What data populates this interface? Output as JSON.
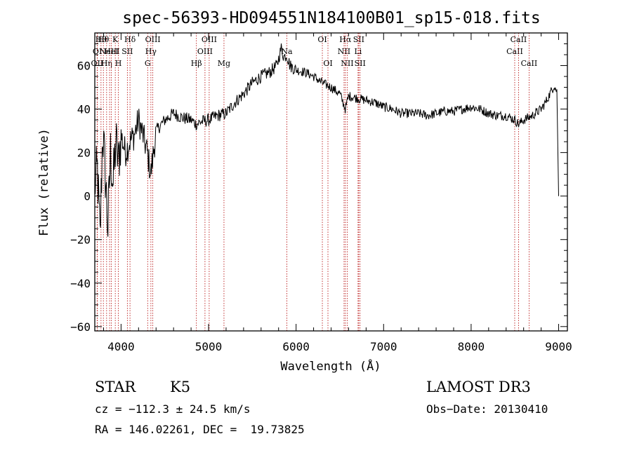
{
  "chart_data": {
    "type": "line",
    "title": "spec-56393-HD094551N184100B01_sp15-018.fits",
    "xlabel": "Wavelength (Å)",
    "ylabel": "Flux (relative)",
    "xlim": [
      3700,
      9100
    ],
    "ylim": [
      -62,
      75
    ],
    "xticks": [
      4000,
      5000,
      6000,
      7000,
      8000,
      9000
    ],
    "yticks": [
      -60,
      -40,
      -20,
      0,
      20,
      40,
      60
    ],
    "series": [
      {
        "name": "flux",
        "x": [
          3700,
          3730,
          3760,
          3790,
          3820,
          3850,
          3880,
          3910,
          3940,
          3970,
          4000,
          4050,
          4100,
          4150,
          4200,
          4250,
          4300,
          4340,
          4400,
          4500,
          4600,
          4700,
          4800,
          4861,
          4900,
          5000,
          5100,
          5200,
          5300,
          5400,
          5500,
          5600,
          5700,
          5780,
          5830,
          5860,
          5893,
          5930,
          6000,
          6100,
          6200,
          6300,
          6400,
          6500,
          6563,
          6600,
          6700,
          6800,
          6900,
          7000,
          7100,
          7200,
          7300,
          7400,
          7500,
          7600,
          7700,
          7800,
          7900,
          8000,
          8100,
          8200,
          8300,
          8400,
          8500,
          8542,
          8600,
          8700,
          8800,
          8850,
          8900,
          8950,
          8980,
          9000
        ],
        "y": [
          5,
          12,
          -20,
          30,
          10,
          -15,
          20,
          5,
          25,
          15,
          28,
          20,
          25,
          28,
          35,
          28,
          20,
          10,
          30,
          35,
          38,
          36,
          35,
          33,
          34,
          35,
          37,
          38,
          43,
          47,
          52,
          55,
          57,
          60,
          68,
          64,
          65,
          60,
          58,
          57,
          55,
          52,
          50,
          47,
          40,
          46,
          45,
          44,
          43,
          41,
          40,
          38,
          38,
          38,
          37,
          38,
          39,
          39,
          40,
          41,
          40,
          38,
          37,
          37,
          35,
          33,
          35,
          37,
          40,
          43,
          47,
          51,
          48,
          0
        ]
      }
    ],
    "line_markers": [
      {
        "x": 3727,
        "label": "OII",
        "row": 3
      },
      {
        "x": 3729,
        "label": "OI",
        "row": 2
      },
      {
        "x": 3771,
        "label": "Hθ",
        "row": 1
      },
      {
        "x": 3798,
        "label": "Hθ",
        "row": 1
      },
      {
        "x": 3835,
        "label": "Hη",
        "row": 3
      },
      {
        "x": 3869,
        "label": "NeIII",
        "row": 2
      },
      {
        "x": 3889,
        "label": "HeI",
        "row": 2
      },
      {
        "x": 3934,
        "label": "K",
        "row": 1
      },
      {
        "x": 3969,
        "label": "H",
        "row": 3
      },
      {
        "x": 4072,
        "label": "SII",
        "row": 2
      },
      {
        "x": 4102,
        "label": "Hδ",
        "row": 1
      },
      {
        "x": 4304,
        "label": "G",
        "row": 3
      },
      {
        "x": 4341,
        "label": "Hγ",
        "row": 2
      },
      {
        "x": 4363,
        "label": "OIII",
        "row": 1
      },
      {
        "x": 4861,
        "label": "Hβ",
        "row": 3
      },
      {
        "x": 4959,
        "label": "OIII",
        "row": 2
      },
      {
        "x": 5007,
        "label": "OIII",
        "row": 1
      },
      {
        "x": 5176,
        "label": "Mg",
        "row": 3
      },
      {
        "x": 5894,
        "label": "Na",
        "row": 2
      },
      {
        "x": 6300,
        "label": "OI",
        "row": 1
      },
      {
        "x": 6364,
        "label": "OI",
        "row": 3
      },
      {
        "x": 6548,
        "label": "NII",
        "row": 2
      },
      {
        "x": 6563,
        "label": "Hα",
        "row": 1
      },
      {
        "x": 6584,
        "label": "NII",
        "row": 3
      },
      {
        "x": 6708,
        "label": "Li",
        "row": 2
      },
      {
        "x": 6716,
        "label": "SII",
        "row": 1
      },
      {
        "x": 6731,
        "label": "SII",
        "row": 3
      },
      {
        "x": 8498,
        "label": "CaII",
        "row": 2
      },
      {
        "x": 8542,
        "label": "CaII",
        "row": 1
      },
      {
        "x": 8662,
        "label": "CaII",
        "row": 3
      }
    ]
  },
  "info": {
    "class": "STAR",
    "subclass": "K5",
    "survey": "LAMOST DR3",
    "cz": "cz = −112.3 ± 24.5 km/s",
    "obs_date": "Obs−Date: 20130410",
    "radec": "RA = 146.02261, DEC =  19.73825"
  }
}
